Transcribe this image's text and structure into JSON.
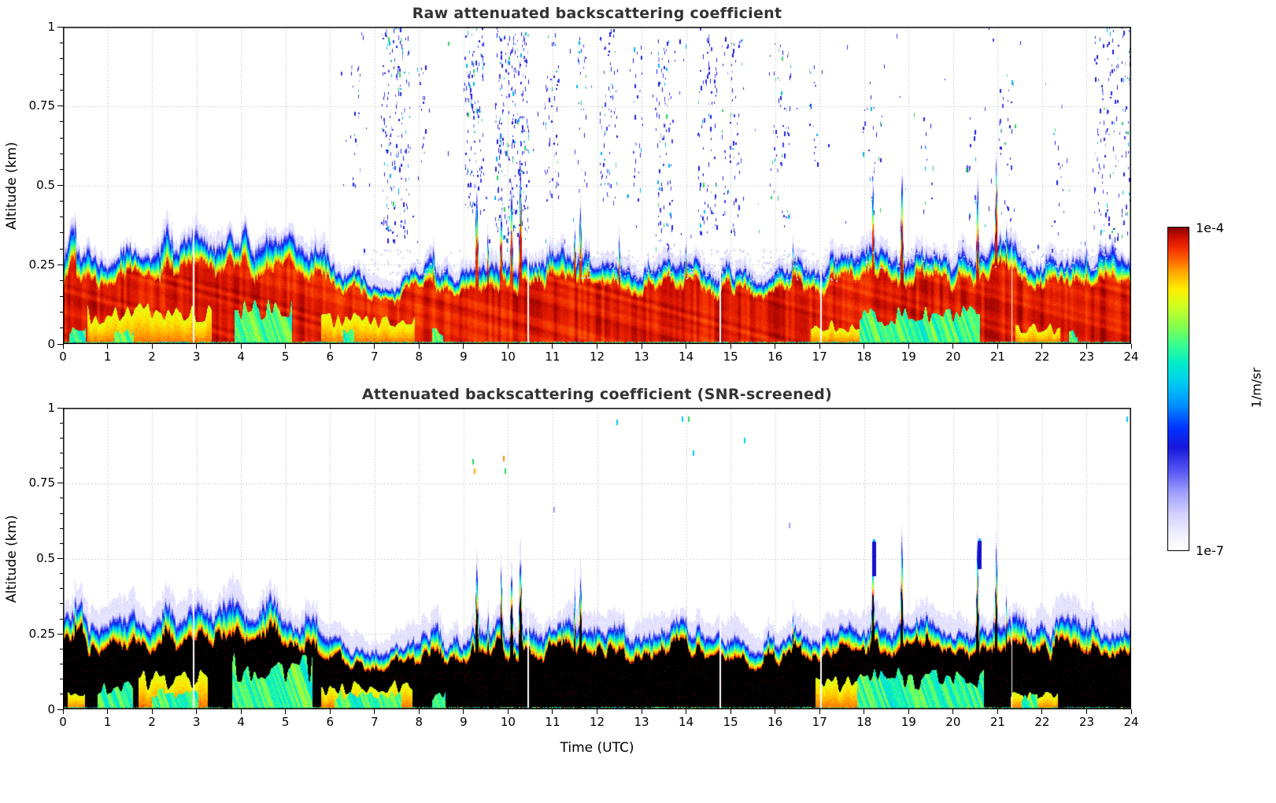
{
  "chart_data": {
    "type": "heatmap",
    "x": {
      "label": "Time (UTC)",
      "min": 0,
      "max": 24,
      "ticks": [
        0,
        1,
        2,
        3,
        4,
        5,
        6,
        7,
        8,
        9,
        10,
        11,
        12,
        13,
        14,
        15,
        16,
        17,
        18,
        19,
        20,
        21,
        22,
        23,
        24
      ]
    },
    "y": {
      "label": "Altitude (km)",
      "min": 0,
      "max": 1,
      "ticks": [
        0,
        0.25,
        0.5,
        0.75,
        1
      ]
    },
    "value": {
      "unit": "1/m/sr",
      "scale": "log",
      "min": 1e-07,
      "max": 0.0001,
      "label_max": "1e-4",
      "label_min": "1e-7",
      "colormap_stops": [
        [
          0,
          "#ffffff"
        ],
        [
          0.05,
          "#f0eeff"
        ],
        [
          0.11,
          "#d4d2ff"
        ],
        [
          0.18,
          "#9e9eff"
        ],
        [
          0.25,
          "#5252f2"
        ],
        [
          0.32,
          "#1717dd"
        ],
        [
          0.38,
          "#0033ff"
        ],
        [
          0.45,
          "#0090ff"
        ],
        [
          0.52,
          "#00ccf2"
        ],
        [
          0.58,
          "#00eec8"
        ],
        [
          0.64,
          "#3cff8c"
        ],
        [
          0.7,
          "#8cff46"
        ],
        [
          0.76,
          "#d2ff1e"
        ],
        [
          0.81,
          "#ffeb00"
        ],
        [
          0.86,
          "#ffaa00"
        ],
        [
          0.9,
          "#ff6400"
        ],
        [
          0.94,
          "#f02800"
        ],
        [
          0.97,
          "#cc0f00"
        ],
        [
          1,
          "#870000"
        ]
      ]
    },
    "core_ratio": 0.72,
    "layer_top_km": [
      [
        0,
        0.3
      ],
      [
        0.25,
        0.36
      ],
      [
        0.5,
        0.31
      ],
      [
        0.8,
        0.28
      ],
      [
        1,
        0.27
      ],
      [
        1.3,
        0.29
      ],
      [
        1.6,
        0.31
      ],
      [
        2,
        0.32
      ],
      [
        2.3,
        0.35
      ],
      [
        2.6,
        0.33
      ],
      [
        3,
        0.37
      ],
      [
        3.2,
        0.35
      ],
      [
        3.5,
        0.32
      ],
      [
        3.8,
        0.35
      ],
      [
        4,
        0.36
      ],
      [
        4.3,
        0.34
      ],
      [
        4.6,
        0.36
      ],
      [
        5,
        0.33
      ],
      [
        5.3,
        0.3
      ],
      [
        5.6,
        0.3
      ],
      [
        6,
        0.26
      ],
      [
        6.4,
        0.23
      ],
      [
        6.8,
        0.21
      ],
      [
        7.2,
        0.19
      ],
      [
        7.6,
        0.21
      ],
      [
        8,
        0.24
      ],
      [
        8.3,
        0.29
      ],
      [
        8.6,
        0.22
      ],
      [
        9,
        0.24
      ],
      [
        9.5,
        0.27
      ],
      [
        10.6,
        0.27
      ],
      [
        11,
        0.29
      ],
      [
        11.3,
        0.33
      ],
      [
        11.9,
        0.28
      ],
      [
        12.2,
        0.26
      ],
      [
        12.6,
        0.29
      ],
      [
        13,
        0.24
      ],
      [
        13.5,
        0.26
      ],
      [
        14,
        0.29
      ],
      [
        14.4,
        0.24
      ],
      [
        15,
        0.24
      ],
      [
        15.5,
        0.22
      ],
      [
        16,
        0.24
      ],
      [
        16.5,
        0.26
      ],
      [
        17,
        0.24
      ],
      [
        17.5,
        0.28
      ],
      [
        18,
        0.29
      ],
      [
        18.5,
        0.28
      ],
      [
        19,
        0.29
      ],
      [
        19.5,
        0.29
      ],
      [
        20,
        0.27
      ],
      [
        20.8,
        0.29
      ],
      [
        21.3,
        0.33
      ],
      [
        21.6,
        0.29
      ],
      [
        22,
        0.27
      ],
      [
        22.5,
        0.29
      ],
      [
        23,
        0.27
      ],
      [
        23.5,
        0.29
      ],
      [
        24,
        0.29
      ]
    ],
    "spikes": [
      [
        0.28,
        0.42,
        0.04
      ],
      [
        8.33,
        0.33,
        0.04
      ],
      [
        9.3,
        0.53,
        0.05
      ],
      [
        9.55,
        0.36,
        0.03
      ],
      [
        9.85,
        0.47,
        0.04
      ],
      [
        10.08,
        0.5,
        0.04
      ],
      [
        10.28,
        0.56,
        0.05
      ],
      [
        11.5,
        0.4,
        0.04
      ],
      [
        11.63,
        0.45,
        0.05
      ],
      [
        12.5,
        0.33,
        0.04
      ],
      [
        14.0,
        0.31,
        0.03
      ],
      [
        16.4,
        0.34,
        0.03
      ],
      [
        18.2,
        0.52,
        0.04
      ],
      [
        18.85,
        0.57,
        0.04
      ],
      [
        20.55,
        0.55,
        0.04
      ],
      [
        20.97,
        0.58,
        0.04
      ],
      [
        21.2,
        0.38,
        0.03
      ],
      [
        23.0,
        0.32,
        0.03
      ]
    ],
    "data_gaps_utc": [
      2.93,
      10.45,
      14.77,
      17.03,
      21.32
    ],
    "panels": [
      {
        "title": "Raw attenuated backscattering coefficient",
        "core_color": "#8b0000",
        "halo_km": 0.02,
        "ground_strip_density": 0.75,
        "ground_patches": [
          [
            0.15,
            0.52,
            0.06
          ],
          [
            1.15,
            1.6,
            0.05
          ],
          [
            3.85,
            5.15,
            0.15
          ],
          [
            6.3,
            6.55,
            0.05
          ],
          [
            8.3,
            8.55,
            0.05
          ],
          [
            17.9,
            20.6,
            0.11
          ],
          [
            22.6,
            22.8,
            0.04
          ]
        ],
        "warm_patches": [
          [
            0.55,
            3.35,
            0.12
          ],
          [
            5.8,
            7.9,
            0.09
          ],
          [
            16.8,
            17.9,
            0.07
          ],
          [
            21.4,
            22.4,
            0.06
          ]
        ],
        "noise_clusters": [
          [
            6.45,
            6.7,
            0.5,
            0.95,
            20
          ],
          [
            7.15,
            7.78,
            0.33,
            1.0,
            170
          ],
          [
            7.95,
            8.15,
            0.5,
            0.9,
            18
          ],
          [
            9.0,
            9.45,
            0.4,
            1.0,
            120
          ],
          [
            9.7,
            10.45,
            0.33,
            1.0,
            260
          ],
          [
            10.8,
            11.15,
            0.45,
            1.0,
            55
          ],
          [
            11.5,
            11.78,
            0.5,
            0.97,
            28
          ],
          [
            12.05,
            12.45,
            0.45,
            1.0,
            65
          ],
          [
            12.8,
            13.02,
            0.5,
            0.95,
            22
          ],
          [
            13.3,
            13.68,
            0.3,
            0.97,
            85
          ],
          [
            14.25,
            14.68,
            0.35,
            1.0,
            85
          ],
          [
            14.8,
            15.28,
            0.35,
            0.97,
            65
          ],
          [
            15.85,
            16.35,
            0.4,
            0.95,
            55
          ],
          [
            16.75,
            16.98,
            0.55,
            0.9,
            16
          ],
          [
            17.95,
            18.4,
            0.35,
            0.85,
            26
          ],
          [
            19.3,
            19.55,
            0.4,
            0.72,
            12
          ],
          [
            20.3,
            20.5,
            0.4,
            0.8,
            14
          ],
          [
            21.02,
            21.38,
            0.3,
            0.85,
            34
          ],
          [
            22.2,
            22.5,
            0.35,
            0.72,
            14
          ],
          [
            23.15,
            24.0,
            0.3,
            1.0,
            150
          ]
        ],
        "sparse_noise": [
          6.0,
          24.0,
          0.3,
          1.0,
          130
        ],
        "pale_bands": [
          [
            11.6,
            17.4,
            0.2,
            0.3,
            240
          ],
          [
            21.4,
            24.0,
            0.22,
            0.3,
            70
          ],
          [
            6.6,
            9.0,
            0.22,
            0.3,
            60
          ],
          [
            17.8,
            21.0,
            0.24,
            0.3,
            60
          ]
        ]
      },
      {
        "title": "Attenuated backscattering coefficient (SNR-screened)",
        "core_color": "#000000",
        "halo_km": 0.04,
        "ground_strip_density": 0.5,
        "ground_patches": [
          [
            0.78,
            1.58,
            0.09
          ],
          [
            2.0,
            3.05,
            0.07
          ],
          [
            3.8,
            5.6,
            0.17
          ],
          [
            6.1,
            7.6,
            0.06
          ],
          [
            8.3,
            8.6,
            0.06
          ],
          [
            17.85,
            20.7,
            0.13
          ],
          [
            21.55,
            21.9,
            0.05
          ]
        ],
        "warm_patches": [
          [
            1.7,
            3.25,
            0.12
          ],
          [
            5.8,
            7.85,
            0.09
          ],
          [
            16.9,
            19.05,
            0.1
          ],
          [
            21.3,
            22.35,
            0.06
          ],
          [
            0.1,
            0.5,
            0.07
          ]
        ],
        "speckles": [
          [
            9.2,
            0.83,
            "#2fd060"
          ],
          [
            9.24,
            0.8,
            "#ffaa00"
          ],
          [
            9.88,
            0.84,
            "#ff8800"
          ],
          [
            9.92,
            0.8,
            "#2fd060"
          ],
          [
            12.43,
            0.96,
            "#00ccf2"
          ],
          [
            13.9,
            0.97,
            "#00ccf2"
          ],
          [
            14.05,
            0.97,
            "#2fd060"
          ],
          [
            14.15,
            0.86,
            "#00ccf2"
          ],
          [
            15.3,
            0.9,
            "#00ccf2"
          ],
          [
            23.9,
            0.97,
            "#00ccf2"
          ],
          [
            11.02,
            0.67,
            "#9e9eff"
          ],
          [
            16.3,
            0.62,
            "#9e9eff"
          ]
        ],
        "blobs": [
          [
            18.22,
            0.44,
            0.555
          ],
          [
            20.58,
            0.465,
            0.56
          ]
        ]
      }
    ]
  }
}
